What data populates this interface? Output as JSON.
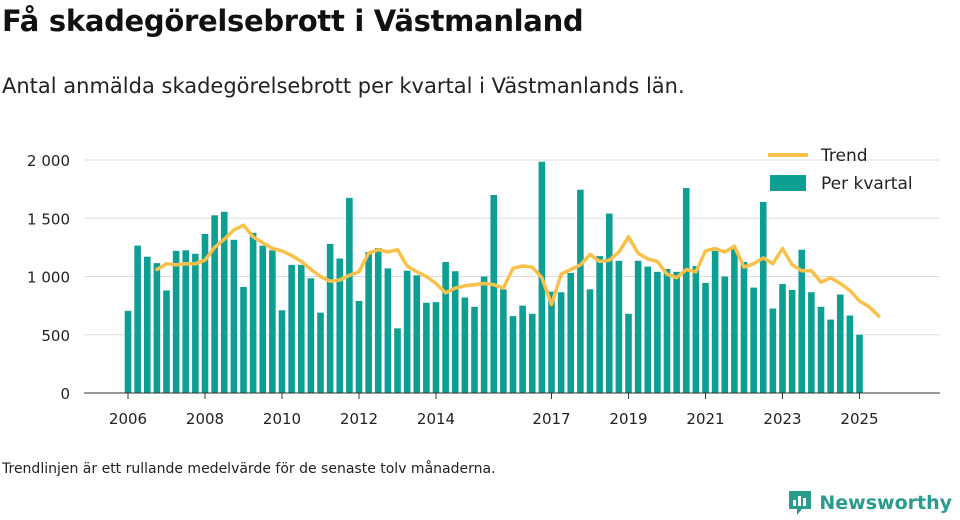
{
  "header": {
    "title": "Få skadegörelsebrott i Västmanland",
    "subtitle": "Antal anmälda skadegörelsebrott per kvartal i Västmanlands län."
  },
  "footer": {
    "note": "Trendlinjen är ett rullande medelvärde för de senaste tolv månaderna.",
    "brand": "Newsworthy"
  },
  "icons": {
    "brand_logo": "newsworthy-logo-icon"
  },
  "colors": {
    "bar": "#0f9e94",
    "trend": "#f9c04a",
    "grid": "#dddddd",
    "brand": "#2a9c8c"
  },
  "chart_data": {
    "type": "bar",
    "x_start": "2006 Q1",
    "x_ticks": [
      "2006",
      "2008",
      "2010",
      "2012",
      "2014",
      "2017",
      "2019",
      "2021",
      "2023",
      "2025"
    ],
    "y_ticks": [
      "0",
      "500",
      "1 000",
      "1 500",
      "2 000"
    ],
    "ylim": [
      0,
      2100
    ],
    "grid": true,
    "legend_position": "top-right",
    "series": [
      {
        "name": "Per kvartal",
        "type": "bar",
        "values": [
          705,
          1265,
          1170,
          1115,
          880,
          1220,
          1225,
          1195,
          1365,
          1525,
          1555,
          1315,
          910,
          1375,
          1265,
          1225,
          710,
          1100,
          1100,
          985,
          690,
          1280,
          1155,
          1675,
          790,
          1210,
          1245,
          1070,
          555,
          1050,
          1010,
          775,
          780,
          1125,
          1045,
          820,
          740,
          1000,
          1700,
          890,
          660,
          750,
          680,
          1985,
          870,
          865,
          1030,
          1745,
          890,
          1175,
          1540,
          1135,
          680,
          1135,
          1085,
          1040,
          1065,
          1040,
          1760,
          1090,
          945,
          1220,
          1000,
          1240,
          1125,
          905,
          1640,
          725,
          935,
          885,
          1230,
          865,
          740,
          630,
          845,
          665,
          500
        ]
      },
      {
        "name": "Trend",
        "type": "line",
        "start_index": 3,
        "values": [
          1060,
          1110,
          1100,
          1110,
          1110,
          1140,
          1250,
          1320,
          1400,
          1440,
          1340,
          1290,
          1240,
          1220,
          1180,
          1130,
          1060,
          1000,
          960,
          970,
          1010,
          1040,
          1200,
          1230,
          1210,
          1230,
          1090,
          1040,
          1000,
          940,
          860,
          900,
          920,
          930,
          940,
          930,
          900,
          1070,
          1090,
          1080,
          990,
          760,
          1020,
          1060,
          1100,
          1190,
          1130,
          1140,
          1210,
          1340,
          1200,
          1150,
          1130,
          1020,
          990,
          1060,
          1040,
          1220,
          1240,
          1210,
          1260,
          1080,
          1110,
          1160,
          1110,
          1240,
          1100,
          1050,
          1050,
          950,
          990,
          940,
          880,
          790,
          740,
          660
        ]
      }
    ]
  }
}
